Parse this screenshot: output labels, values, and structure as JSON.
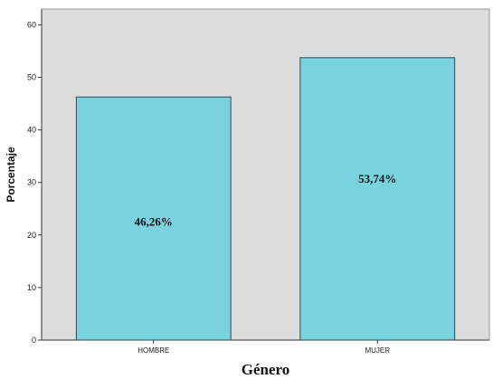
{
  "chart_data": {
    "type": "bar",
    "categories": [
      "HOMBRE",
      "MUJER"
    ],
    "values": [
      46.26,
      53.74
    ],
    "data_labels": [
      "46,26%",
      "53,74%"
    ],
    "xlabel": "Género",
    "ylabel": "Porcentaje",
    "ylim": [
      0,
      63
    ],
    "yticks": [
      0,
      10,
      20,
      30,
      40,
      50,
      60
    ],
    "grid": false,
    "legend": "none",
    "colors": {
      "bar_fill": "#79D3DE",
      "bar_stroke": "#2b4a55",
      "plot_background": "#DCDCDC"
    }
  }
}
